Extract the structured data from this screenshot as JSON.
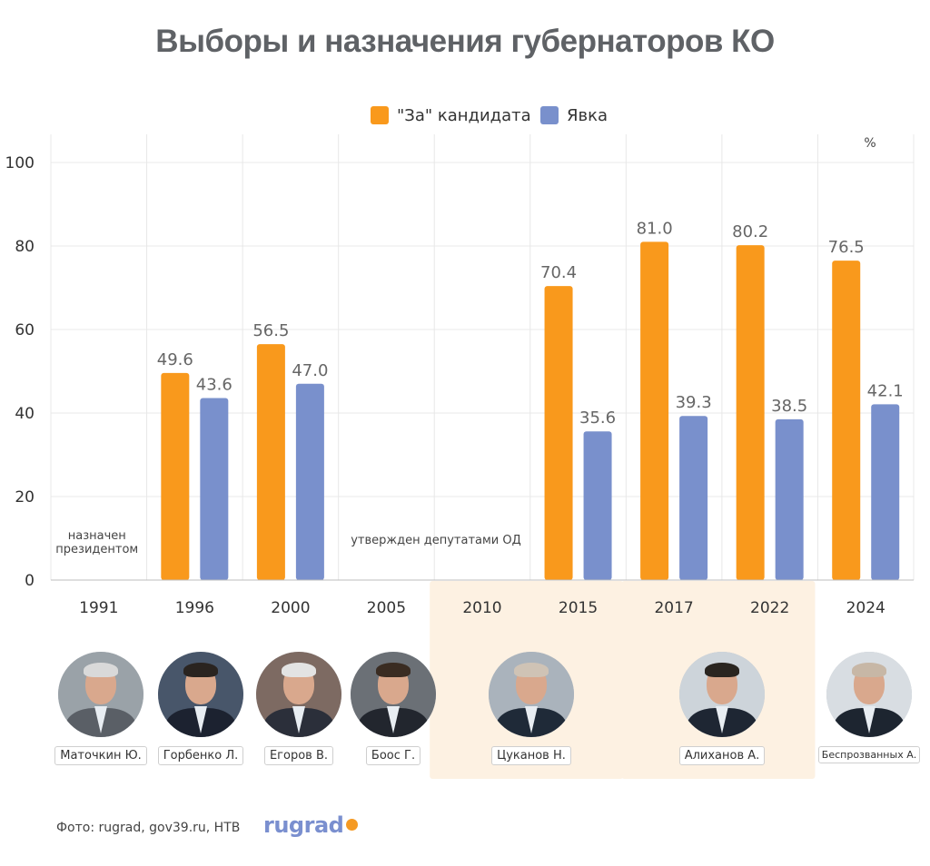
{
  "title": "Выборы и назначения губернаторов КО",
  "chart_data": {
    "type": "bar",
    "categories": [
      "1991",
      "1996",
      "2000",
      "2005",
      "2010",
      "2015",
      "2017",
      "2022",
      "2024"
    ],
    "series": [
      {
        "name": "\"За\" кандидата",
        "color": "#f9991c",
        "values": [
          null,
          49.6,
          56.5,
          null,
          null,
          70.4,
          81.0,
          80.2,
          76.5
        ],
        "labels": [
          "",
          "49.6",
          "56.5",
          "",
          "",
          "70.4",
          "81.0",
          "80.2",
          "76.5"
        ]
      },
      {
        "name": "Явка",
        "color": "#7990cc",
        "values": [
          null,
          43.6,
          47.0,
          null,
          null,
          35.6,
          39.3,
          38.5,
          42.1
        ],
        "labels": [
          "",
          "43.6",
          "47.0",
          "",
          "",
          "35.6",
          "39.3",
          "38.5",
          "42.1"
        ]
      }
    ],
    "ylim": [
      0,
      100
    ],
    "yticks": [
      "0",
      "20",
      "40",
      "60",
      "80",
      "100"
    ],
    "unit": "%",
    "annotations": [
      {
        "category": "1991",
        "text_lines": [
          "назначен",
          "президентом"
        ]
      },
      {
        "category": "2005",
        "text_lines": [
          "утвержден депутатами ОД"
        ]
      }
    ],
    "highlighted_categories": [
      "2010",
      "2017"
    ],
    "legend_position": "top-center",
    "grid": true
  },
  "governors": [
    {
      "name": "Маточкин Ю."
    },
    {
      "name": "Горбенко Л."
    },
    {
      "name": "Егоров В."
    },
    {
      "name": "Боос Г."
    },
    {
      "name": "Цуканов Н."
    },
    {
      "name": "Алиханов А."
    },
    {
      "name": "Беспрозванных А."
    }
  ],
  "footer": {
    "credit": "Фото: rugrad, gov39.ru, НТВ",
    "logo": "rugrad"
  },
  "colors": {
    "highlight": "#fdf1e2",
    "grid": "#e8e8e8"
  }
}
